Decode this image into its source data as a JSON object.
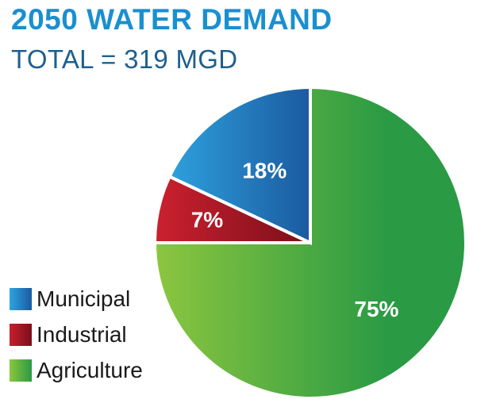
{
  "chart_data": {
    "type": "pie",
    "title": "2050 WATER DEMAND",
    "subtitle": "TOTAL = 319 MGD",
    "start_angle_deg": 0,
    "direction": "clockwise",
    "slices": [
      {
        "name": "Agriculture",
        "value": 75,
        "label": "75%",
        "color_light": "#8cc63f",
        "color_dark": "#2a9a44"
      },
      {
        "name": "Industrial",
        "value": 7,
        "label": "7%",
        "color_light": "#c8202e",
        "color_dark": "#7a0e1a"
      },
      {
        "name": "Municipal",
        "value": 18,
        "label": "18%",
        "color_light": "#2fa4e0",
        "color_dark": "#1b5aa0"
      }
    ],
    "legend": {
      "position": "bottom-left",
      "items": [
        "Municipal",
        "Industrial",
        "Agriculture"
      ]
    }
  }
}
